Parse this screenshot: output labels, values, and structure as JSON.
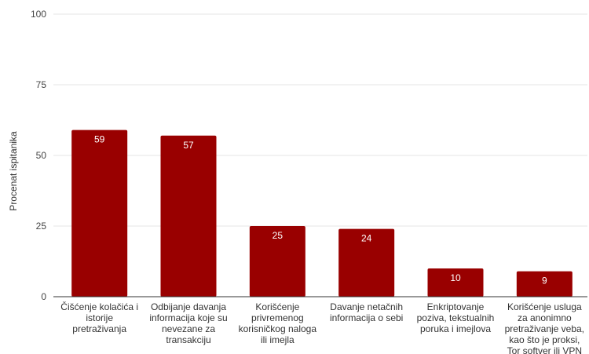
{
  "chart_data": {
    "type": "bar",
    "title": "",
    "xlabel": "",
    "ylabel": "Procenat ispitanika",
    "ylim": [
      0,
      100
    ],
    "yticks": [
      0,
      25,
      50,
      75,
      100
    ],
    "grid": true,
    "bar_color": "#990000",
    "label_color": "#ffffff",
    "categories": [
      "Čišćenje kolačića i istorije pretraživanja",
      "Odbijanje davanja informacija koje su nevezane za transakciju",
      "Korišćenje privremenog korisničkog naloga ili imejla",
      "Davanje netačnih informacija o sebi",
      "Enkriptovanje poziva, tekstualnih poruka i imejlova",
      "Korišćenje usluga za anonimno pretraživanje veba, kao što je proksi, Tor softver ili VPN"
    ],
    "values": [
      59,
      57,
      25,
      24,
      10,
      9
    ]
  }
}
